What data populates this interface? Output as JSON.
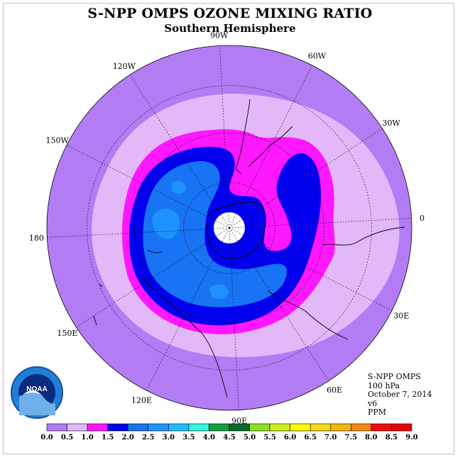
{
  "title": "S-NPP OMPS OZONE MIXING RATIO",
  "subtitle": "Southern Hemisphere",
  "longitude_labels": [
    {
      "text": "90W",
      "lon": -90
    },
    {
      "text": "60W",
      "lon": -60
    },
    {
      "text": "30W",
      "lon": -30
    },
    {
      "text": "0",
      "lon": 0
    },
    {
      "text": "30E",
      "lon": 30
    },
    {
      "text": "60E",
      "lon": 60
    },
    {
      "text": "90E",
      "lon": 90
    },
    {
      "text": "120E",
      "lon": 120
    },
    {
      "text": "150E",
      "lon": 150
    },
    {
      "text": "180",
      "lon": 180
    },
    {
      "text": "150W",
      "lon": -150
    },
    {
      "text": "120W",
      "lon": -120
    }
  ],
  "info": {
    "instrument": "S-NPP OMPS",
    "level": "100 hPa",
    "date": "October 7, 2014",
    "version": "v6",
    "units": "PPM"
  },
  "logo_text": "NOAA",
  "colorbar": {
    "ticks": [
      "0.0",
      "0.5",
      "1.0",
      "1.5",
      "2.0",
      "2.5",
      "3.0",
      "3.5",
      "4.0",
      "4.5",
      "5.0",
      "5.5",
      "6.0",
      "6.5",
      "7.0",
      "7.5",
      "8.0",
      "8.5",
      "9.0"
    ],
    "colors": [
      "#b27cf5",
      "#e2b8f8",
      "#ff18ff",
      "#0000ee",
      "#1873f5",
      "#1e93ff",
      "#1bbfff",
      "#33f5e0",
      "#10a040",
      "#0a6a2a",
      "#8fe020",
      "#cfef1a",
      "#ffff00",
      "#f8d818",
      "#f4b410",
      "#f48810",
      "#f00a0a",
      "#e80000",
      "#8b5030"
    ]
  },
  "colors": {
    "band_0_0_5": "#b27cf5",
    "band_0_5_1_0": "#e2b8f8",
    "band_1_0_1_5": "#ff18ff",
    "band_1_5_2_0": "#0000ee",
    "band_2_0_2_5": "#1873f5",
    "band_2_5_3_0": "#1e93ff",
    "pole_mask": "#ffffff",
    "frame": "#e3a8e8"
  }
}
